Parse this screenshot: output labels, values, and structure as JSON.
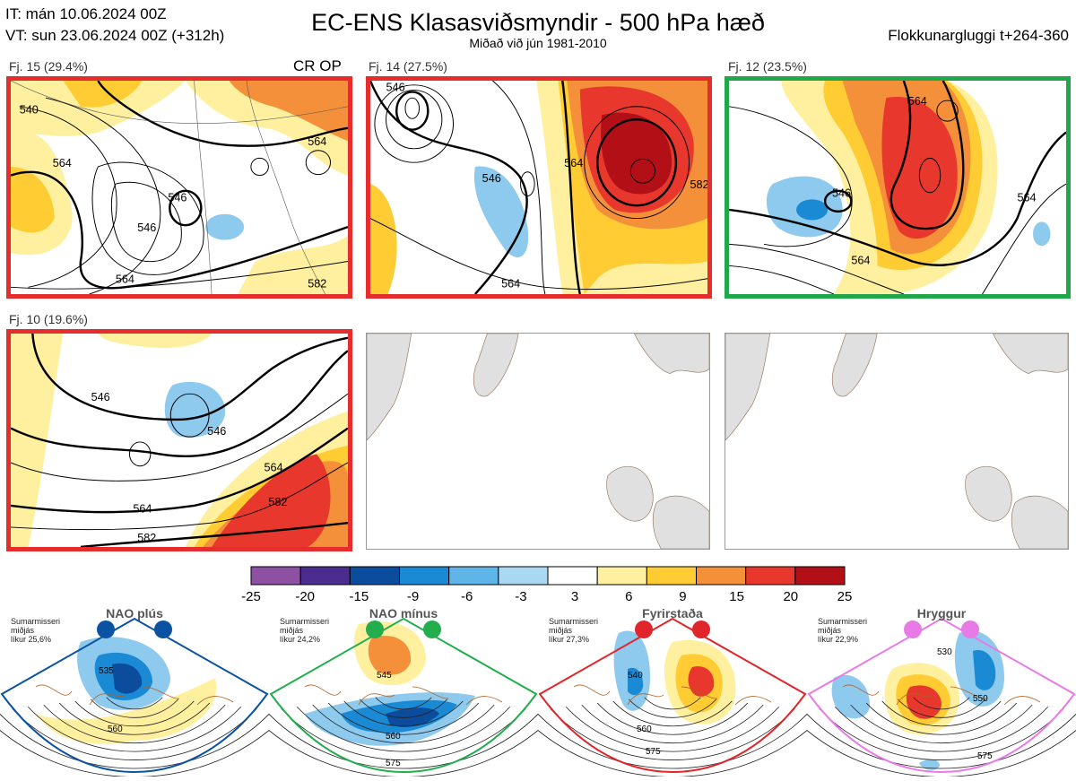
{
  "header": {
    "it": "IT: mán 10.06.2024 00Z",
    "vt": "VT: sun 23.06.2024 00Z  (+312h)",
    "title": "EC-ENS Klasasviðsmyndir - 500 hPa hæð",
    "subtitle": "Miðað við jún 1981-2010",
    "window": "Flokkunargluggi t+264-360"
  },
  "panels": [
    {
      "label": "Fj. 15 (29.4%)",
      "extra": "CR OP",
      "frame": "red",
      "contours": [
        "540",
        "546",
        "546",
        "564",
        "564",
        "564",
        "582"
      ]
    },
    {
      "label": "Fj. 14 (27.5%)",
      "extra": "",
      "frame": "red",
      "contours": [
        "546",
        "546",
        "564",
        "564",
        "582"
      ]
    },
    {
      "label": "Fj. 12 (23.5%)",
      "extra": "",
      "frame": "green",
      "contours": [
        "546",
        "564",
        "564",
        "564"
      ]
    },
    {
      "label": "Fj. 10 (19.6%)",
      "extra": "",
      "frame": "red",
      "contours": [
        "546",
        "546",
        "564",
        "564",
        "582",
        "582"
      ]
    },
    {
      "label": "",
      "extra": "",
      "frame": "none",
      "contours": []
    },
    {
      "label": "",
      "extra": "",
      "frame": "none",
      "contours": []
    }
  ],
  "chart_data": {
    "type": "heatmap",
    "title": "EC-ENS Klasasviðsmyndir - 500 hPa hæð",
    "subtitle": "Miðað við jún 1981-2010",
    "legend_position": "bottom-center",
    "colorbar": {
      "ticks": [
        "-25",
        "-20",
        "-15",
        "-9",
        "-6",
        "-3",
        "3",
        "6",
        "9",
        "15",
        "20",
        "25"
      ],
      "colors": [
        "#8e50a3",
        "#4a2d8f",
        "#0c4c9c",
        "#1a8ad4",
        "#5fb4e8",
        "#a9d8f2",
        "#ffffff",
        "#fff0a0",
        "#ffcc33",
        "#f5903a",
        "#e8372c",
        "#b30f17"
      ]
    }
  },
  "climate_clusters": [
    {
      "name": "NAO plús",
      "note_lines": [
        "Sumarmisseri",
        "miðjás",
        "líkur 25,6%"
      ],
      "color": "#0c52a3",
      "labels": [
        "535",
        "560"
      ]
    },
    {
      "name": "NAO mínus",
      "note_lines": [
        "Sumarmisseri",
        "miðjás",
        "líkur 24,2%"
      ],
      "color": "#23ad4d",
      "labels": [
        "545",
        "560",
        "575"
      ]
    },
    {
      "name": "Fyrirstaða",
      "note_lines": [
        "Sumarmisseri",
        "miðjás",
        "líkur 27,3%"
      ],
      "color": "#e0262a",
      "labels": [
        "540",
        "560",
        "575"
      ]
    },
    {
      "name": "Hryggur",
      "note_lines": [
        "Sumarmisseri",
        "miðjás",
        "líkur 22,9%"
      ],
      "color": "#e87ae6",
      "labels": [
        "530",
        "550",
        "575"
      ]
    }
  ]
}
